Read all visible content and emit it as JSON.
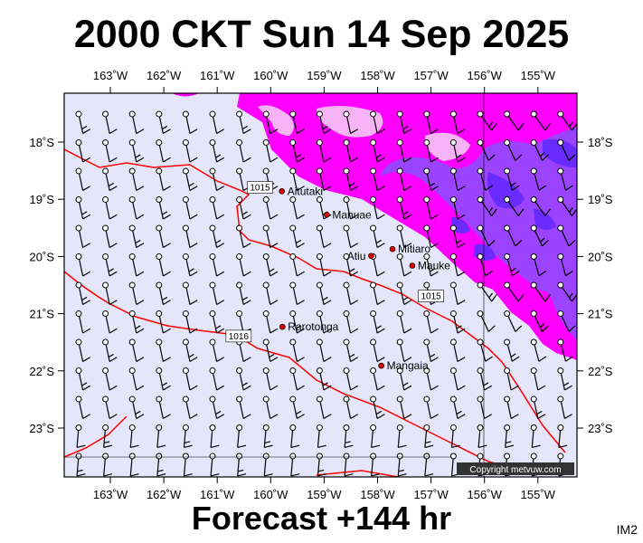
{
  "title": "2000 CKT Sun 14 Sep 2025",
  "forecast_label": "Forecast +144 hr",
  "map_id": "IM2",
  "copyright": "Copyright metvuw.com",
  "colors": {
    "background": "#e6e6fa",
    "rain_light": "#ff00ff",
    "rain_medium": "#9a44ff",
    "rain_heavy": "#6a2bff",
    "isobar": "#ff0000",
    "border": "#000000"
  },
  "longitude_labels": [
    "163˚W",
    "162˚W",
    "161˚W",
    "160˚W",
    "159˚W",
    "158˚W",
    "157˚W",
    "156˚W",
    "155˚W"
  ],
  "latitude_labels": [
    "18˚S",
    "19˚S",
    "20˚S",
    "21˚S",
    "22˚S",
    "23˚S"
  ],
  "places": [
    {
      "name": "Aitutaki",
      "lon": -159.79,
      "lat": -18.86
    },
    {
      "name": "Manuae",
      "lon": -158.95,
      "lat": -19.27
    },
    {
      "name": "Mitiaro",
      "lon": -157.72,
      "lat": -19.87
    },
    {
      "name": "Atiu",
      "lon": -158.12,
      "lat": -19.99
    },
    {
      "name": "Mauke",
      "lon": -157.35,
      "lat": -20.16
    },
    {
      "name": "Rarotonga",
      "lon": -159.78,
      "lat": -21.23
    },
    {
      "name": "Mangaia",
      "lon": -157.93,
      "lat": -21.91
    }
  ],
  "isobars": [
    {
      "label": "1015",
      "label_lon": -160.2,
      "label_lat": -18.8
    },
    {
      "label": "1015",
      "label_lon": -157.0,
      "label_lat": -20.7
    },
    {
      "label": "1016",
      "label_lon": -160.6,
      "label_lat": -21.4
    }
  ]
}
